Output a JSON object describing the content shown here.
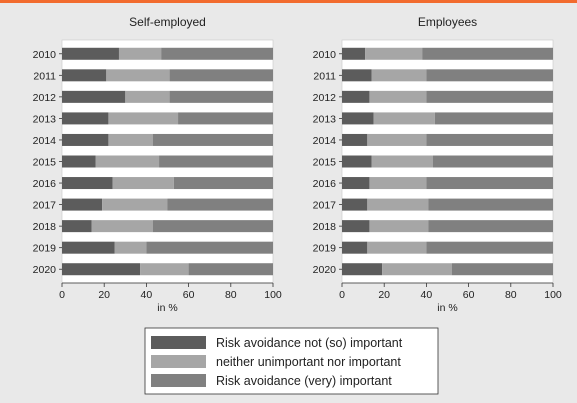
{
  "colors": {
    "dark": "#5c5c5c",
    "light": "#a6a6a6",
    "medium": "#808080",
    "accent_bar": "#f26b2e"
  },
  "chart_data": [
    {
      "type": "bar",
      "orientation": "horizontal",
      "stacked": true,
      "title": "Self-employed",
      "xlabel": "in %",
      "xlim": [
        0,
        100
      ],
      "xticks": [
        "0",
        "20",
        "40",
        "60",
        "80",
        "100"
      ],
      "categories": [
        "2010",
        "2011",
        "2012",
        "2013",
        "2014",
        "2015",
        "2016",
        "2017",
        "2018",
        "2019",
        "2020"
      ],
      "series": [
        {
          "name": "Risk avoidance not (so) important",
          "values": [
            27,
            21,
            30,
            22,
            22,
            16,
            24,
            19,
            14,
            25,
            37
          ]
        },
        {
          "name": "neither unimportant nor important",
          "values": [
            20,
            30,
            21,
            33,
            21,
            30,
            29,
            31,
            29,
            15,
            23
          ]
        },
        {
          "name": "Risk avoidance (very) important",
          "values": [
            53,
            49,
            49,
            45,
            57,
            54,
            47,
            50,
            57,
            60,
            40
          ]
        }
      ]
    },
    {
      "type": "bar",
      "orientation": "horizontal",
      "stacked": true,
      "title": "Employees",
      "xlabel": "in %",
      "xlim": [
        0,
        100
      ],
      "xticks": [
        "0",
        "20",
        "40",
        "60",
        "80",
        "100"
      ],
      "categories": [
        "2010",
        "2011",
        "2012",
        "2013",
        "2014",
        "2015",
        "2016",
        "2017",
        "2018",
        "2019",
        "2020"
      ],
      "series": [
        {
          "name": "Risk avoidance not (so) important",
          "values": [
            11,
            14,
            13,
            15,
            12,
            14,
            13,
            12,
            13,
            12,
            19
          ]
        },
        {
          "name": "neither unimportant nor important",
          "values": [
            27,
            26,
            27,
            29,
            28,
            29,
            27,
            29,
            28,
            28,
            33
          ]
        },
        {
          "name": "Risk avoidance (very) important",
          "values": [
            62,
            60,
            60,
            56,
            60,
            57,
            60,
            59,
            59,
            60,
            48
          ]
        }
      ]
    }
  ],
  "legend": {
    "items": [
      {
        "label": "Risk avoidance not (so) important",
        "color_key": "dark"
      },
      {
        "label": "neither unimportant nor important",
        "color_key": "light"
      },
      {
        "label": "Risk avoidance (very) important",
        "color_key": "medium"
      }
    ]
  }
}
